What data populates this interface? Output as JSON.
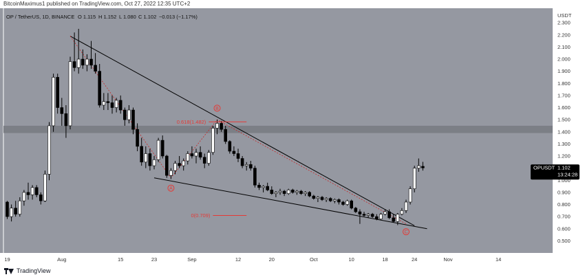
{
  "header": {
    "text": "BitcoinMaximus1 published on TradingView.com, Oct 27, 2022 12:35 UTC+2"
  },
  "footer": {
    "logo_text": "TradingView",
    "logo_icon": "tradingview-logo-icon"
  },
  "colors": {
    "background": "#9598a1",
    "bull_candle": "#ffffff",
    "bear_candle": "#000000",
    "wedge_line": "#000000",
    "wave_line": "#c62828",
    "annotation": "#e53935",
    "zone": "#7c7f86",
    "price_tag": "#000000"
  },
  "chart_data": {
    "type": "candlestick",
    "symbol_info": {
      "title": "OP / TetherUS, 1D, BINANCE",
      "open": "O 1.115",
      "high": "H 1.152",
      "low": "L 1.080",
      "close": "C 1.102",
      "change": "−0.013 (−1.17%)"
    },
    "y_axis": {
      "currency": "USDT",
      "ylim": [
        0.4,
        2.42
      ],
      "ticks": [
        "2.300",
        "2.200",
        "2.100",
        "2.000",
        "1.900",
        "1.800",
        "1.700",
        "1.600",
        "1.500",
        "1.400",
        "1.300",
        "1.200",
        "1.100",
        "1.000",
        "0.900",
        "0.800",
        "0.700",
        "0.600",
        "0.500"
      ]
    },
    "x_axis": {
      "day_range": [
        0,
        120
      ],
      "ticks": [
        {
          "day": 0,
          "label": "19"
        },
        {
          "day": 13,
          "label": "Aug"
        },
        {
          "day": 27,
          "label": "15"
        },
        {
          "day": 35,
          "label": "23"
        },
        {
          "day": 44,
          "label": "Sep"
        },
        {
          "day": 55,
          "label": "12"
        },
        {
          "day": 63,
          "label": "20"
        },
        {
          "day": 73,
          "label": "Oct"
        },
        {
          "day": 82,
          "label": "10"
        },
        {
          "day": 90,
          "label": "18"
        },
        {
          "day": 97,
          "label": "24"
        },
        {
          "day": 105,
          "label": "Nov"
        },
        {
          "day": 117,
          "label": "14"
        }
      ]
    },
    "candles": [
      [
        0.82,
        0.83,
        0.68,
        0.7
      ],
      [
        0.7,
        0.8,
        0.66,
        0.77
      ],
      [
        0.77,
        0.83,
        0.7,
        0.72
      ],
      [
        0.72,
        0.86,
        0.7,
        0.83
      ],
      [
        0.83,
        0.92,
        0.79,
        0.9
      ],
      [
        0.9,
        0.98,
        0.84,
        0.88
      ],
      [
        0.88,
        0.96,
        0.84,
        0.94
      ],
      [
        0.94,
        0.96,
        0.86,
        0.88
      ],
      [
        0.88,
        0.9,
        0.8,
        0.83
      ],
      [
        0.83,
        1.08,
        0.82,
        1.05
      ],
      [
        1.05,
        1.48,
        1.0,
        1.45
      ],
      [
        1.45,
        1.88,
        1.4,
        1.85
      ],
      [
        1.85,
        1.88,
        1.55,
        1.6
      ],
      [
        1.6,
        1.68,
        1.45,
        1.55
      ],
      [
        1.55,
        1.62,
        1.35,
        1.45
      ],
      [
        1.45,
        2.02,
        1.42,
        1.98
      ],
      [
        1.98,
        2.22,
        1.9,
        1.93
      ],
      [
        1.93,
        2.25,
        1.88,
        2.0
      ],
      [
        2.0,
        2.08,
        1.92,
        1.95
      ],
      [
        1.95,
        2.04,
        1.9,
        2.0
      ],
      [
        2.0,
        2.15,
        1.92,
        1.95
      ],
      [
        1.95,
        2.05,
        1.88,
        1.9
      ],
      [
        1.9,
        1.96,
        1.6,
        1.62
      ],
      [
        1.62,
        1.72,
        1.58,
        1.65
      ],
      [
        1.65,
        1.72,
        1.58,
        1.64
      ],
      [
        1.64,
        1.7,
        1.55,
        1.6
      ],
      [
        1.6,
        1.68,
        1.56,
        1.66
      ],
      [
        1.66,
        1.7,
        1.55,
        1.58
      ],
      [
        1.58,
        1.6,
        1.45,
        1.5
      ],
      [
        1.5,
        1.62,
        1.47,
        1.58
      ],
      [
        1.58,
        1.6,
        1.38,
        1.42
      ],
      [
        1.42,
        1.47,
        1.24,
        1.28
      ],
      [
        1.28,
        1.35,
        1.12,
        1.15
      ],
      [
        1.15,
        1.28,
        1.1,
        1.22
      ],
      [
        1.22,
        1.26,
        1.08,
        1.12
      ],
      [
        1.12,
        1.2,
        1.09,
        1.17
      ],
      [
        1.17,
        1.35,
        1.15,
        1.33
      ],
      [
        1.33,
        1.37,
        1.18,
        1.2
      ],
      [
        1.2,
        1.21,
        1.02,
        1.04
      ],
      [
        1.04,
        1.1,
        1.01,
        1.08
      ],
      [
        1.08,
        1.16,
        1.05,
        1.14
      ],
      [
        1.14,
        1.2,
        1.1,
        1.12
      ],
      [
        1.12,
        1.18,
        1.08,
        1.16
      ],
      [
        1.16,
        1.24,
        1.13,
        1.22
      ],
      [
        1.22,
        1.28,
        1.18,
        1.2
      ],
      [
        1.2,
        1.26,
        1.14,
        1.23
      ],
      [
        1.23,
        1.28,
        1.17,
        1.19
      ],
      [
        1.19,
        1.22,
        1.1,
        1.14
      ],
      [
        1.14,
        1.25,
        1.12,
        1.23
      ],
      [
        1.23,
        1.45,
        1.21,
        1.43
      ],
      [
        1.43,
        1.5,
        1.38,
        1.47
      ],
      [
        1.47,
        1.49,
        1.4,
        1.42
      ],
      [
        1.42,
        1.45,
        1.3,
        1.32
      ],
      [
        1.32,
        1.33,
        1.22,
        1.24
      ],
      [
        1.24,
        1.28,
        1.2,
        1.22
      ],
      [
        1.22,
        1.26,
        1.15,
        1.18
      ],
      [
        1.18,
        1.2,
        1.1,
        1.12
      ],
      [
        1.12,
        1.15,
        1.08,
        1.13
      ],
      [
        1.13,
        1.16,
        1.08,
        1.1
      ],
      [
        1.1,
        1.12,
        0.94,
        0.96
      ],
      [
        0.96,
        0.98,
        0.92,
        0.94
      ],
      [
        0.94,
        0.96,
        0.9,
        0.95
      ],
      [
        0.95,
        0.98,
        0.91,
        0.92
      ],
      [
        0.92,
        0.95,
        0.88,
        0.89
      ],
      [
        0.89,
        0.91,
        0.86,
        0.9
      ],
      [
        0.9,
        0.93,
        0.88,
        0.91
      ],
      [
        0.91,
        0.92,
        0.87,
        0.89
      ],
      [
        0.89,
        0.93,
        0.88,
        0.92
      ],
      [
        0.92,
        0.93,
        0.89,
        0.9
      ],
      [
        0.9,
        0.92,
        0.88,
        0.91
      ],
      [
        0.91,
        0.92,
        0.88,
        0.89
      ],
      [
        0.89,
        0.91,
        0.87,
        0.9
      ],
      [
        0.9,
        0.91,
        0.86,
        0.87
      ],
      [
        0.87,
        0.88,
        0.84,
        0.85
      ],
      [
        0.85,
        0.87,
        0.82,
        0.86
      ],
      [
        0.86,
        0.87,
        0.83,
        0.84
      ],
      [
        0.84,
        0.86,
        0.82,
        0.85
      ],
      [
        0.85,
        0.86,
        0.82,
        0.83
      ],
      [
        0.83,
        0.85,
        0.81,
        0.84
      ],
      [
        0.84,
        0.85,
        0.8,
        0.82
      ],
      [
        0.82,
        0.83,
        0.79,
        0.8
      ],
      [
        0.8,
        0.84,
        0.79,
        0.83
      ],
      [
        0.83,
        0.84,
        0.76,
        0.77
      ],
      [
        0.77,
        0.78,
        0.73,
        0.74
      ],
      [
        0.74,
        0.76,
        0.64,
        0.72
      ],
      [
        0.72,
        0.74,
        0.7,
        0.71
      ],
      [
        0.71,
        0.73,
        0.69,
        0.72
      ],
      [
        0.72,
        0.73,
        0.69,
        0.7
      ],
      [
        0.7,
        0.72,
        0.67,
        0.68
      ],
      [
        0.68,
        0.73,
        0.67,
        0.72
      ],
      [
        0.72,
        0.76,
        0.71,
        0.74
      ],
      [
        0.74,
        0.76,
        0.68,
        0.69
      ],
      [
        0.69,
        0.72,
        0.65,
        0.66
      ],
      [
        0.66,
        0.73,
        0.63,
        0.72
      ],
      [
        0.72,
        0.77,
        0.71,
        0.75
      ],
      [
        0.75,
        0.84,
        0.73,
        0.82
      ],
      [
        0.82,
        0.95,
        0.8,
        0.93
      ],
      [
        0.93,
        1.12,
        0.9,
        1.1
      ],
      [
        1.1,
        1.18,
        1.07,
        1.12
      ],
      [
        1.115,
        1.152,
        1.08,
        1.102
      ]
    ],
    "price_tag": {
      "symbol": "OPUSDT",
      "price": "1.102",
      "countdown": "13:24:28"
    },
    "resistance_zone": [
      1.39,
      1.45
    ],
    "fib_levels": [
      {
        "label": "0.618(1.482)",
        "price": 1.482,
        "day_start": 48,
        "day_end": 57
      },
      {
        "label": "0(0.709)",
        "price": 0.709,
        "day_start": 49,
        "day_end": 57
      }
    ],
    "wedge_lines": [
      {
        "name": "upper",
        "points": [
          [
            15,
            2.19
          ],
          [
            97,
            0.625
          ]
        ]
      },
      {
        "name": "lower",
        "points": [
          [
            35,
            1.02
          ],
          [
            100,
            0.6
          ]
        ]
      }
    ],
    "wave_path": [
      [
        15,
        2.19
      ],
      [
        39,
        1.02
      ],
      [
        50,
        1.5
      ],
      [
        95,
        0.64
      ]
    ],
    "wave_labels": [
      {
        "label": "A",
        "day": 39,
        "price": 0.935
      },
      {
        "label": "B",
        "day": 50,
        "price": 1.595
      },
      {
        "label": "C",
        "day": 95,
        "price": 0.575
      }
    ]
  }
}
